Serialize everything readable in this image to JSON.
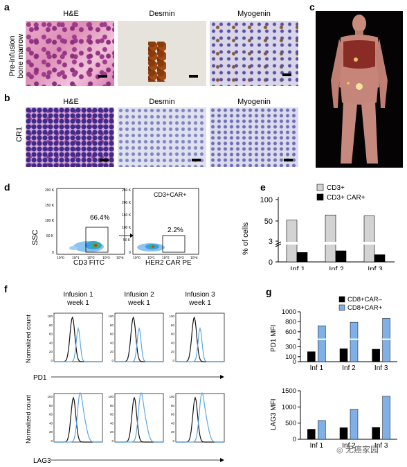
{
  "panels": {
    "a": {
      "letter": "a",
      "row_label": "Pre-infusion\nbone marrow",
      "row_label_1": "Pre-infusion",
      "row_label_2": "bone marrow",
      "stains": [
        "H&E",
        "Desmin",
        "Myogenin"
      ]
    },
    "b": {
      "letter": "b",
      "row_label": "CR1",
      "stains": [
        "H&E",
        "Desmin",
        "Myogenin"
      ]
    },
    "c": {
      "letter": "c"
    },
    "d": {
      "letter": "d",
      "left": {
        "ylabel": "SSC",
        "xlabel": "CD3 FITC",
        "gate_pct": "66.4%",
        "yticks": [
          "200 K",
          "150 K",
          "100 K",
          "50 K",
          "0"
        ],
        "xticks": [
          "10^0",
          "10^1",
          "10^2",
          "10^3",
          "10^4"
        ]
      },
      "right": {
        "xlabel": "HER2 CAR PE",
        "gate_pct": "2.2%",
        "title": "CD3+CAR+",
        "yticks": [
          "250 K",
          "200 K",
          "150 K",
          "100 K",
          "50 K",
          "0"
        ],
        "xticks": [
          "10^0",
          "10^1",
          "10^2",
          "10^3",
          "10^4"
        ]
      }
    },
    "e": {
      "letter": "e"
    },
    "f": {
      "letter": "f",
      "columns": [
        {
          "line1": "Infusion 1",
          "line2": "week 1"
        },
        {
          "line1": "Infusion 2",
          "line2": "week 1"
        },
        {
          "line1": "Infusion 3",
          "line2": "week 1"
        }
      ],
      "ylabel": "Normalized count",
      "yticks": [
        "100",
        "80",
        "60",
        "40",
        "20",
        "0"
      ],
      "markers": [
        "PD1",
        "LAG3"
      ]
    },
    "g": {
      "letter": "g"
    }
  },
  "chart_data": [
    {
      "type": "bar",
      "panel": "e",
      "ylabel": "% of cells",
      "categories": [
        "Inf 1",
        "Inf 2",
        "Inf 3"
      ],
      "yticks": [
        "100",
        "50",
        "3",
        "0"
      ],
      "axis_break": true,
      "series": [
        {
          "name": "CD3+",
          "color": "#d3d3d3",
          "values": [
            52,
            64,
            62
          ]
        },
        {
          "name": "CD3+ CAR+",
          "color": "#000000",
          "values": [
            1.7,
            2.0,
            1.3
          ]
        }
      ]
    },
    {
      "type": "bar",
      "panel": "g-top",
      "ylabel": "PD1 MFI",
      "categories": [
        "Inf 1",
        "Inf 2",
        "Inf 3"
      ],
      "yticks": [
        "1000",
        "800",
        "600",
        "300",
        "100",
        "0"
      ],
      "ylim": [
        0,
        1000
      ],
      "axis_break": true,
      "series": [
        {
          "name": "CD8+CAR–",
          "color": "#000000",
          "values": [
            200,
            260,
            250
          ]
        },
        {
          "name": "CD8+CAR+",
          "color": "#7fb1e8",
          "values": [
            720,
            790,
            870
          ]
        }
      ]
    },
    {
      "type": "bar",
      "panel": "g-bottom",
      "ylabel": "LAG3 MFI",
      "categories": [
        "Inf 1",
        "Inf 2",
        "Inf 3"
      ],
      "yticks": [
        "1500",
        "1000",
        "500",
        "0"
      ],
      "ylim": [
        0,
        1500
      ],
      "series": [
        {
          "name": "CD8+CAR–",
          "color": "#000000",
          "values": [
            310,
            360,
            370
          ]
        },
        {
          "name": "CD8+CAR+",
          "color": "#7fb1e8",
          "values": [
            580,
            930,
            1330
          ]
        }
      ]
    }
  ],
  "watermark": "无癌家园"
}
